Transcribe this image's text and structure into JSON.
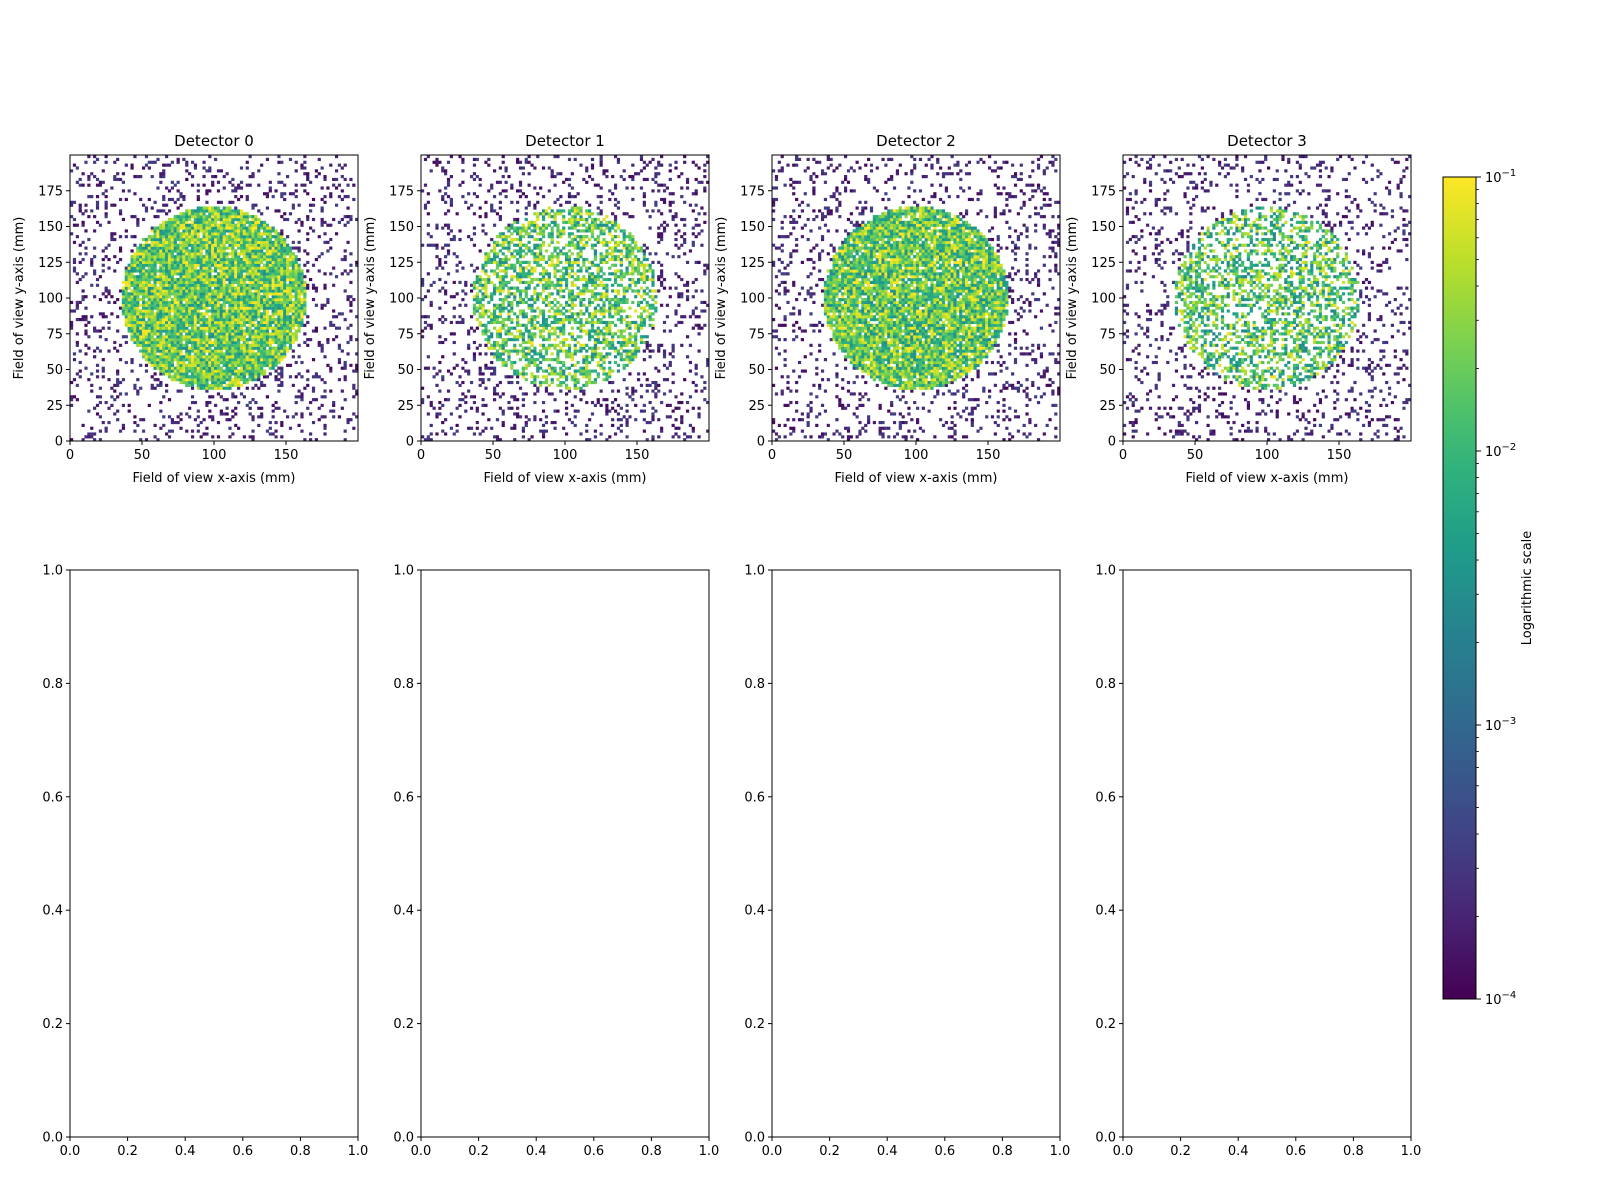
{
  "chart_data": {
    "type": "heatmap",
    "colormap": "viridis",
    "colorbar": {
      "label": "Logarithmic scale",
      "scale": "log",
      "range": [
        0.0001,
        0.1
      ],
      "ticks": [
        {
          "value": 0.1,
          "base": "10",
          "exp": "−1"
        },
        {
          "value": 0.01,
          "base": "10",
          "exp": "−2"
        },
        {
          "value": 0.001,
          "base": "10",
          "exp": "−3"
        },
        {
          "value": 0.0001,
          "base": "10",
          "exp": "−4"
        }
      ]
    },
    "detectors": [
      {
        "title": "Detector 0",
        "xlabel": "Field of view x-axis (mm)",
        "ylabel": "Field of view y-axis (mm)",
        "xlim": [
          0,
          200
        ],
        "ylim": [
          0,
          200
        ],
        "xticks": [
          "0",
          "50",
          "100",
          "150"
        ],
        "yticks": [
          "0",
          "25",
          "50",
          "75",
          "100",
          "125",
          "150",
          "175"
        ],
        "disk_center_mm": [
          100,
          100
        ],
        "disk_radius_mm": 64,
        "disk_fill_fraction": 0.95,
        "disk_log_mean": -1.7
      },
      {
        "title": "Detector 1",
        "xlabel": "Field of view x-axis (mm)",
        "ylabel": "Field of view y-axis (mm)",
        "xlim": [
          0,
          200
        ],
        "ylim": [
          0,
          200
        ],
        "xticks": [
          "0",
          "50",
          "100",
          "150"
        ],
        "yticks": [
          "0",
          "25",
          "50",
          "75",
          "100",
          "125",
          "150",
          "175"
        ],
        "disk_center_mm": [
          100,
          100
        ],
        "disk_radius_mm": 64,
        "disk_fill_fraction": 0.55,
        "disk_log_mean": -1.8
      },
      {
        "title": "Detector 2",
        "xlabel": "Field of view x-axis (mm)",
        "ylabel": "Field of view y-axis (mm)",
        "xlim": [
          0,
          200
        ],
        "ylim": [
          0,
          200
        ],
        "xticks": [
          "0",
          "50",
          "100",
          "150"
        ],
        "yticks": [
          "0",
          "25",
          "50",
          "75",
          "100",
          "125",
          "150",
          "175"
        ],
        "disk_center_mm": [
          100,
          100
        ],
        "disk_radius_mm": 64,
        "disk_fill_fraction": 0.93,
        "disk_log_mean": -1.75
      },
      {
        "title": "Detector 3",
        "xlabel": "Field of view x-axis (mm)",
        "ylabel": "Field of view y-axis (mm)",
        "xlim": [
          0,
          200
        ],
        "ylim": [
          0,
          200
        ],
        "xticks": [
          "0",
          "50",
          "100",
          "150"
        ],
        "yticks": [
          "0",
          "25",
          "50",
          "75",
          "100",
          "125",
          "150",
          "175"
        ],
        "disk_center_mm": [
          100,
          100
        ],
        "disk_radius_mm": 64,
        "disk_fill_fraction": 0.5,
        "disk_log_mean": -1.85
      }
    ],
    "empty_axes": [
      {
        "xlim": [
          0,
          1
        ],
        "ylim": [
          0,
          1
        ],
        "xticks": [
          "0.0",
          "0.2",
          "0.4",
          "0.6",
          "0.8",
          "1.0"
        ],
        "yticks": [
          "0.0",
          "0.2",
          "0.4",
          "0.6",
          "0.8",
          "1.0"
        ]
      },
      {
        "xlim": [
          0,
          1
        ],
        "ylim": [
          0,
          1
        ],
        "xticks": [
          "0.0",
          "0.2",
          "0.4",
          "0.6",
          "0.8",
          "1.0"
        ],
        "yticks": [
          "0.0",
          "0.2",
          "0.4",
          "0.6",
          "0.8",
          "1.0"
        ]
      },
      {
        "xlim": [
          0,
          1
        ],
        "ylim": [
          0,
          1
        ],
        "xticks": [
          "0.0",
          "0.2",
          "0.4",
          "0.6",
          "0.8",
          "1.0"
        ],
        "yticks": [
          "0.0",
          "0.2",
          "0.4",
          "0.6",
          "0.8",
          "1.0"
        ]
      },
      {
        "xlim": [
          0,
          1
        ],
        "ylim": [
          0,
          1
        ],
        "xticks": [
          "0.0",
          "0.2",
          "0.4",
          "0.6",
          "0.8",
          "1.0"
        ],
        "yticks": [
          "0.0",
          "0.2",
          "0.4",
          "0.6",
          "0.8",
          "1.0"
        ]
      }
    ]
  }
}
